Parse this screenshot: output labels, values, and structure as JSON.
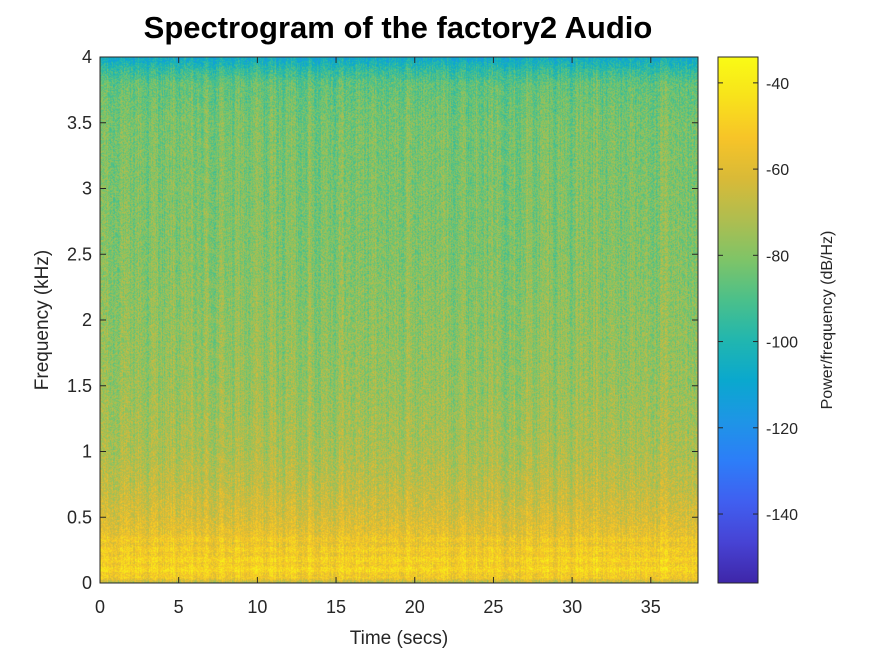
{
  "chart_data": {
    "type": "heatmap",
    "title": "Spectrogram of the factory2 Audio",
    "xlabel": "Time (secs)",
    "ylabel": "Frequency (kHz)",
    "xlim": [
      0,
      38
    ],
    "ylim": [
      0,
      4
    ],
    "xticks": [
      0,
      5,
      10,
      15,
      20,
      25,
      30,
      35
    ],
    "yticks": [
      0,
      0.5,
      1,
      1.5,
      2,
      2.5,
      3,
      3.5,
      4
    ],
    "xtick_labels": [
      "0",
      "5",
      "10",
      "15",
      "20",
      "25",
      "30",
      "35"
    ],
    "ytick_labels": [
      "0",
      "0.5",
      "1",
      "1.5",
      "2",
      "2.5",
      "3",
      "3.5",
      "4"
    ],
    "colorbar": {
      "label": "Power/frequency (dB/Hz)",
      "range": [
        -156,
        -34
      ],
      "ticks": [
        -40,
        -60,
        -80,
        -100,
        -120,
        -140
      ],
      "tick_labels": [
        "-40",
        "-60",
        "-80",
        "-100",
        "-120",
        "-140"
      ]
    },
    "power_profile_by_frequency": {
      "frequency_khz": [
        0,
        0.05,
        0.1,
        0.2,
        0.3,
        0.5,
        0.75,
        1,
        1.5,
        2,
        2.5,
        3,
        3.5,
        3.8,
        3.9,
        4
      ],
      "mean_db": [
        -75,
        -52,
        -50,
        -52,
        -55,
        -62,
        -68,
        -72,
        -76,
        -78,
        -80,
        -81,
        -82,
        -86,
        -95,
        -108
      ]
    },
    "colormap": [
      "#3e26a8",
      "#4743d4",
      "#405ff0",
      "#2d7df8",
      "#1e95e6",
      "#0aa8ce",
      "#21b6af",
      "#4bc08a",
      "#7fc467",
      "#b0bd4f",
      "#d9ba37",
      "#f7c428",
      "#f8e21b",
      "#f9fb15"
    ]
  }
}
